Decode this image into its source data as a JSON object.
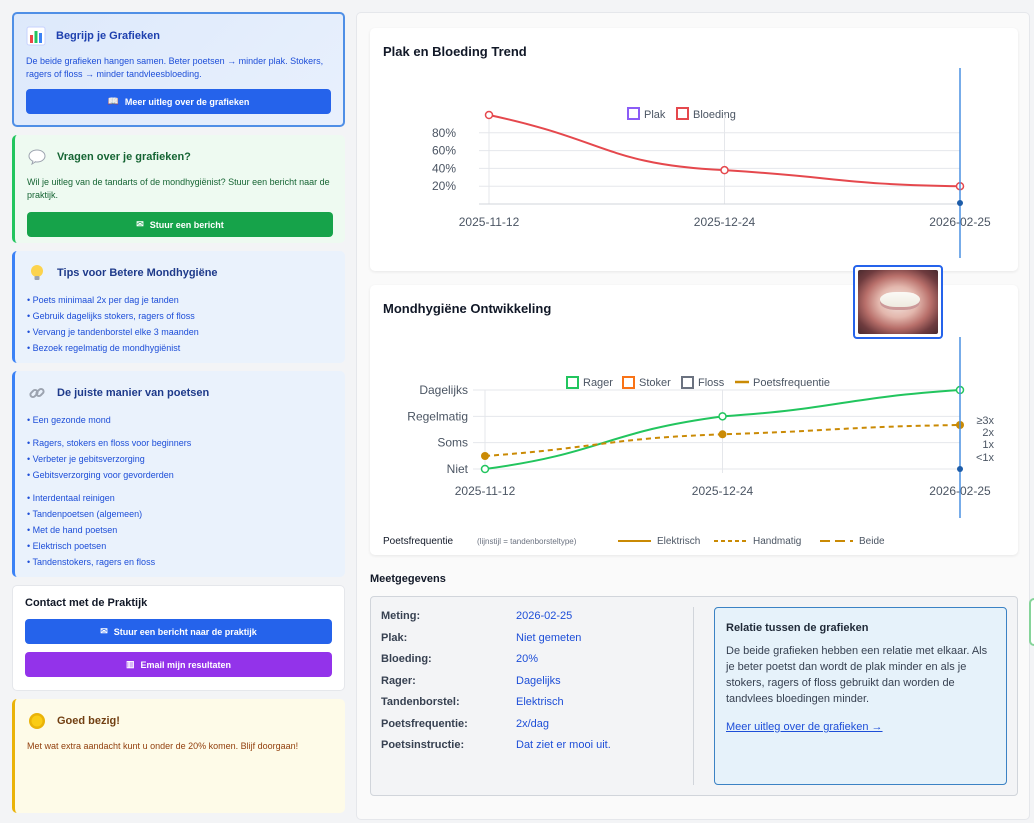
{
  "sidebar": {
    "begrijp": {
      "title": "Begrijp je Grafieken",
      "text": "De beide grafieken hangen samen. Beter poetsen → minder plak. Stokers, ragers of floss → minder tandvleesbloeding.",
      "button": "Meer uitleg over de grafieken",
      "icon": "bar-chart-icon",
      "button_icon": "book-icon"
    },
    "vragen": {
      "title": "Vragen over je grafieken?",
      "text": "Wil je uitleg van de tandarts of de mondhygiënist? Stuur een bericht naar de praktijk.",
      "button": "Stuur een bericht",
      "icon": "speech-bubble-icon",
      "button_icon": "mail-icon"
    },
    "tips": {
      "title": "Tips voor Betere Mondhygiëne",
      "icon": "lightbulb-icon",
      "items": [
        "Poets minimaal 2x per dag je tanden",
        "Gebruik dagelijks stokers, ragers of floss",
        "Vervang je tandenborstel elke 3 maanden",
        "Bezoek regelmatig de mondhygiënist"
      ]
    },
    "manier": {
      "title": "De juiste manier van poetsen",
      "icon": "link-icon",
      "group1": [
        "Een gezonde mond"
      ],
      "group2": [
        "Ragers, stokers en floss voor beginners",
        "Verbeter je gebitsverzorging",
        "Gebitsverzorging voor gevorderden"
      ],
      "group3": [
        "Interdentaal reinigen",
        "Tandenpoetsen (algemeen)",
        "Met de hand poetsen",
        "Elektrisch poetsen",
        "Tandenstokers, ragers en floss"
      ]
    },
    "contact": {
      "title": "Contact met de Praktijk",
      "button1": "Stuur een bericht naar de praktijk",
      "button2": "Email mijn resultaten",
      "button1_icon": "envelope-icon",
      "button2_icon": "chart-icon"
    },
    "goed": {
      "title": "Goed bezig!",
      "text": "Met wat extra aandacht kunt u onder de 20% komen. Blijf doorgaan!",
      "icon": "gold-medal-icon"
    }
  },
  "chart_data": [
    {
      "type": "line",
      "title": "Plak en Bloeding Trend",
      "x": [
        "2025-11-12",
        "2025-12-24",
        "2026-02-25"
      ],
      "legend": [
        "Plak",
        "Bloeding"
      ],
      "legend_placement": "top",
      "series": [
        {
          "name": "Plak",
          "color": "#8b5cf6",
          "values": [
            null,
            null,
            null
          ]
        },
        {
          "name": "Bloeding",
          "color": "#e5484d",
          "values": [
            100,
            38,
            20
          ]
        }
      ],
      "yticks": [
        "20%",
        "40%",
        "60%",
        "80%"
      ],
      "ylim": [
        0,
        100
      ],
      "grid": true
    },
    {
      "type": "line",
      "title": "Mondhygiëne Ontwikkeling",
      "x": [
        "2025-11-12",
        "2025-12-24",
        "2026-02-25"
      ],
      "legend": [
        "Rager",
        "Stoker",
        "Floss",
        "Poetsfrequentie"
      ],
      "legend_placement": "top",
      "left_ticks": [
        "Niet",
        "Soms",
        "Regelmatig",
        "Dagelijks"
      ],
      "right_ticks": [
        "<1x",
        "1x",
        "2x",
        "≥3x"
      ],
      "series": [
        {
          "name": "Rager",
          "color": "#22c55e",
          "values": [
            "Niet",
            "Regelmatig",
            "Dagelijks"
          ]
        },
        {
          "name": "Stoker",
          "color": "#f97316",
          "values": [
            null,
            null,
            null
          ]
        },
        {
          "name": "Floss",
          "color": "#6b7280",
          "values": [
            null,
            null,
            null
          ]
        },
        {
          "name": "Poetsfrequentie",
          "color": "#ca8a04",
          "values": [
            "1x",
            "1.7x",
            "2x"
          ]
        }
      ],
      "grid": true,
      "footer": {
        "label": "Poetsfrequentie",
        "note": "(lijnstijl = tandenborsteltype)",
        "styles": [
          "Elektrisch",
          "Handmatig",
          "Beide"
        ]
      }
    }
  ],
  "meetgegevens": {
    "title": "Meetgegevens",
    "rows": [
      {
        "k": "Meting:",
        "v": "2026-02-25"
      },
      {
        "k": "Plak:",
        "v": "Niet gemeten"
      },
      {
        "k": "Bloeding:",
        "v": "20%"
      },
      {
        "k": "Rager:",
        "v": "Dagelijks"
      },
      {
        "k": "Tandenborstel:",
        "v": "Elektrisch"
      },
      {
        "k": "Poetsfrequentie:",
        "v": "2x/dag"
      },
      {
        "k": "Poetsinstructie:",
        "v": "Dat ziet er mooi uit."
      }
    ],
    "relatie": {
      "title": "Relatie tussen de grafieken",
      "text": "De beide grafieken hebben een relatie met elkaar. Als je beter poetst dan wordt de plak minder en als je stokers, ragers of floss gebruikt dan worden de tandvlees bloedingen minder.",
      "link": "Meer uitleg over de grafieken →"
    }
  },
  "photo": {
    "icon": "mouth-photo-thumbnail"
  }
}
